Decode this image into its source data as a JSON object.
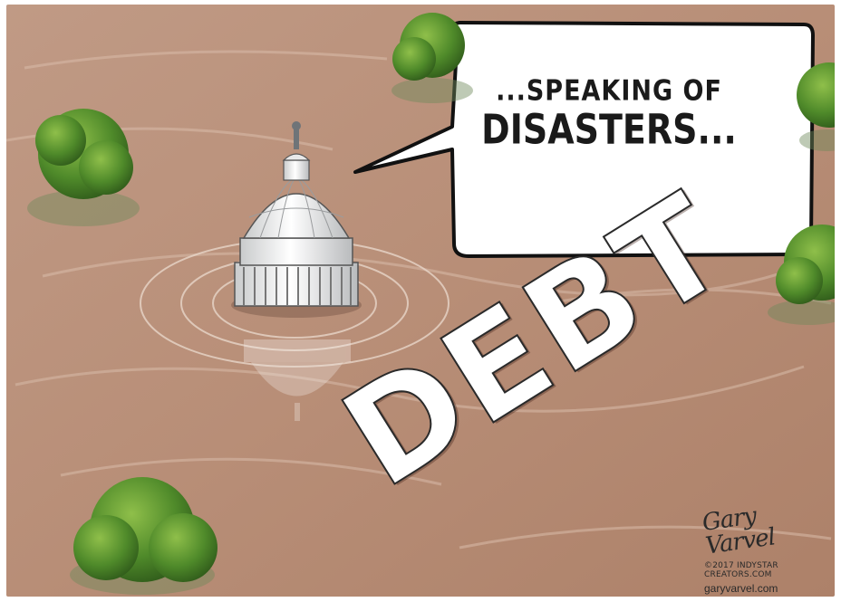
{
  "cartoon": {
    "speech_bubble": {
      "line1": "...SPEAKING OF",
      "line2": "DISASTERS..."
    },
    "flood_word": "DEBT",
    "signature": {
      "name": "Gary Varvel",
      "copyright_line1": "©2017 INDYSTAR",
      "copyright_line2": "CREATORS.COM",
      "url": "garyvarvel.com"
    }
  },
  "colors": {
    "floodwater": "#b98e77",
    "tree_green": "#4f8a2a",
    "dome_white": "#f2f2f0",
    "ink": "#1a1a1a"
  }
}
